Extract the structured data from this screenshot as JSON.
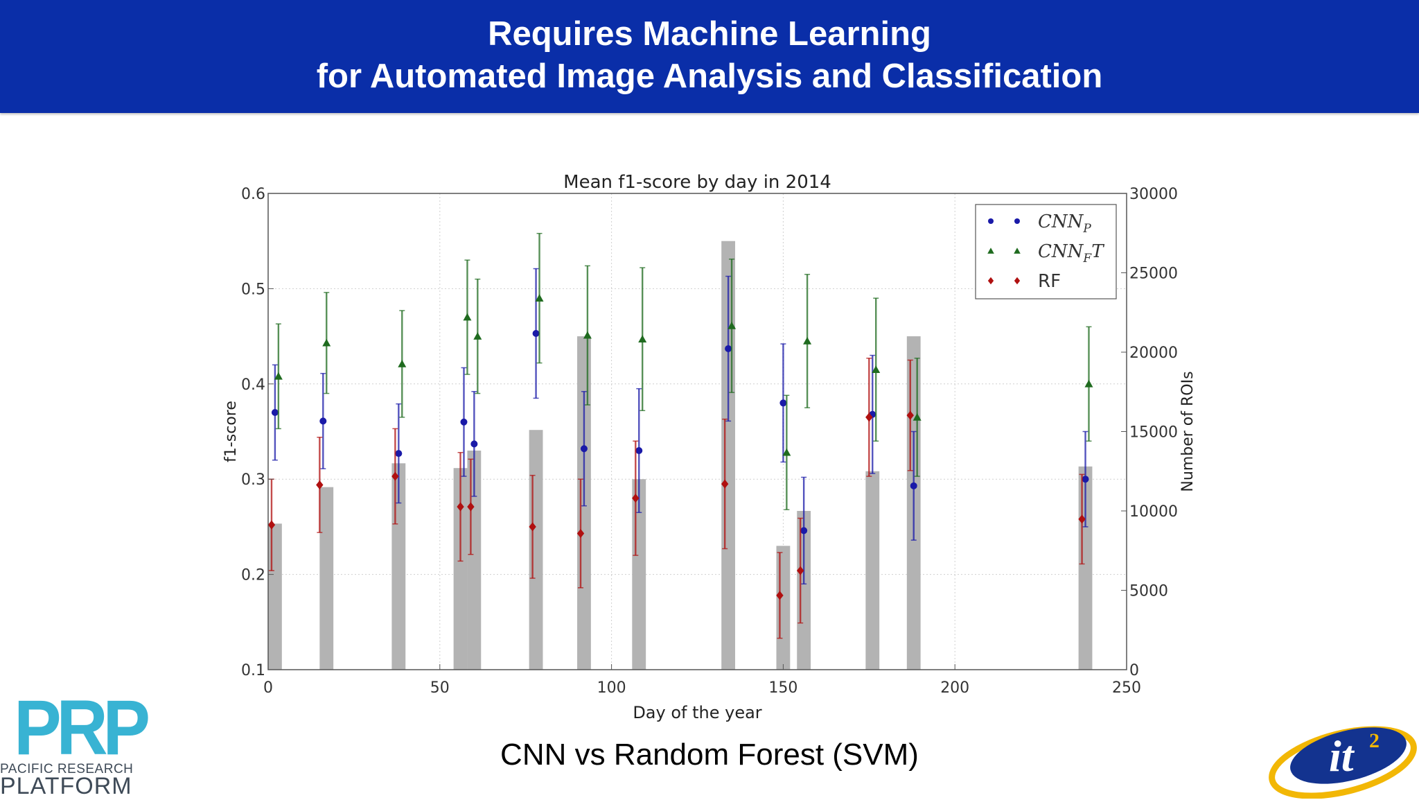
{
  "header": {
    "title_line1": "Requires Machine Learning",
    "title_line2": "for Automated Image Analysis and Classification"
  },
  "caption": "CNN vs Random Forest (SVM)",
  "logos": {
    "prp_letters": "PRP",
    "prp_line1": "PACIFIC RESEARCH",
    "prp_line2": "PLATFORM",
    "it2_text": "it",
    "it2_superscript": "2"
  },
  "colors": {
    "header_bg": "#0a2ea8",
    "cnn_p": "#1a1aa8",
    "cnn_ft": "#1f6b1f",
    "rf": "#b01010",
    "bars": "#b3b3b3"
  },
  "chart_data": {
    "type": "scatter",
    "title": "Mean f1-score by day in 2014",
    "xlabel": "Day of the year",
    "ylabel": "f1-score",
    "y2label": "Number of ROIs",
    "xlim": [
      0,
      250
    ],
    "ylim": [
      0.1,
      0.6
    ],
    "y2lim": [
      0,
      30000
    ],
    "xticks": [
      "0",
      "50",
      "100",
      "150",
      "200",
      "250"
    ],
    "yticks": [
      "0.1",
      "0.2",
      "0.3",
      "0.4",
      "0.5",
      "0.6"
    ],
    "y2ticks": [
      "0",
      "5000",
      "10000",
      "15000",
      "20000",
      "25000",
      "30000"
    ],
    "grid": true,
    "legend_position": "top-right",
    "series": [
      {
        "name": "CNN_P",
        "marker": "circle",
        "color": "#1a1aa8",
        "x": [
          2,
          16,
          38,
          57,
          60,
          78,
          92,
          108,
          134,
          150,
          156,
          176,
          188,
          238
        ],
        "y": [
          0.37,
          0.361,
          0.327,
          0.36,
          0.337,
          0.453,
          0.332,
          0.33,
          0.437,
          0.38,
          0.246,
          0.368,
          0.293,
          0.3
        ],
        "err": [
          0.05,
          0.05,
          0.052,
          0.057,
          0.055,
          0.068,
          0.06,
          0.065,
          0.076,
          0.062,
          0.056,
          0.062,
          0.057,
          0.05
        ]
      },
      {
        "name": "CNN_FT",
        "marker": "triangle",
        "color": "#1f6b1f",
        "x": [
          3,
          17,
          39,
          58,
          61,
          79,
          93,
          109,
          135,
          151,
          157,
          177,
          189,
          239
        ],
        "y": [
          0.408,
          0.443,
          0.421,
          0.47,
          0.45,
          0.49,
          0.451,
          0.447,
          0.461,
          0.328,
          0.445,
          0.415,
          0.365,
          0.4
        ],
        "err": [
          0.055,
          0.053,
          0.056,
          0.06,
          0.06,
          0.068,
          0.073,
          0.075,
          0.07,
          0.06,
          0.07,
          0.075,
          0.062,
          0.06
        ]
      },
      {
        "name": "RF",
        "marker": "diamond",
        "color": "#b01010",
        "x": [
          1,
          15,
          37,
          56,
          59,
          77,
          91,
          107,
          133,
          149,
          155,
          175,
          187,
          237
        ],
        "y": [
          0.252,
          0.294,
          0.303,
          0.271,
          0.271,
          0.25,
          0.243,
          0.28,
          0.295,
          0.178,
          0.204,
          0.365,
          0.367,
          0.258
        ],
        "err": [
          0.048,
          0.05,
          0.05,
          0.057,
          0.05,
          0.054,
          0.057,
          0.06,
          0.068,
          0.045,
          0.055,
          0.062,
          0.058,
          0.047
        ]
      },
      {
        "name": "Number of ROIs",
        "type": "bar",
        "axis": "right",
        "color": "#b3b3b3",
        "width": 4,
        "x": [
          2,
          17,
          38,
          56,
          60,
          78,
          92,
          108,
          134,
          150,
          156,
          176,
          188,
          238
        ],
        "values": [
          9200,
          11500,
          13000,
          12700,
          13800,
          15100,
          21000,
          12000,
          27000,
          7800,
          10000,
          12500,
          21000,
          12800
        ]
      }
    ],
    "legend": [
      {
        "math_main": "CNN",
        "math_sub": "P",
        "math_suffix": "",
        "marker": "circle",
        "color": "#1a1aa8"
      },
      {
        "math_main": "CNN",
        "math_sub": "F",
        "math_suffix": "T",
        "marker": "triangle",
        "color": "#1f6b1f"
      },
      {
        "label": "RF",
        "marker": "diamond",
        "color": "#b01010"
      }
    ]
  }
}
